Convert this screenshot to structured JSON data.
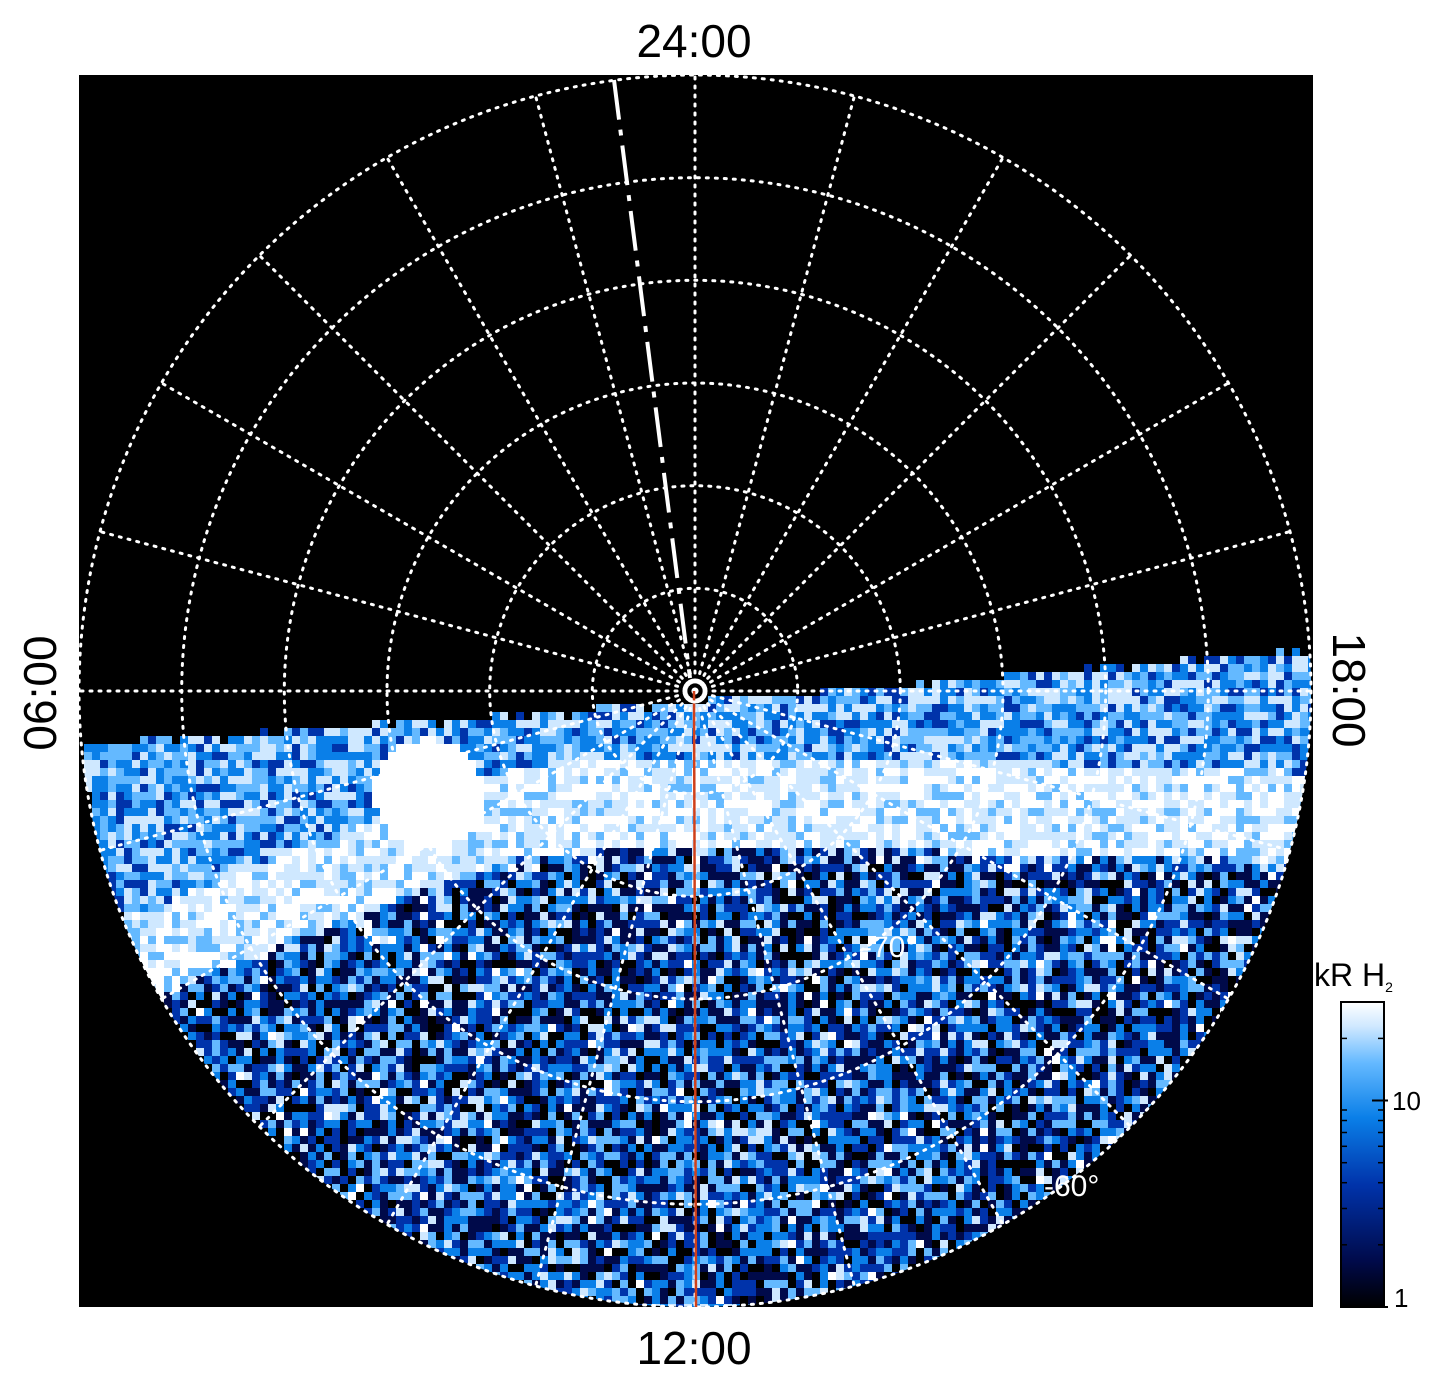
{
  "chart_data": {
    "type": "heatmap",
    "projection": "polar-stereographic",
    "background_color": "#000000",
    "local_time_labels": {
      "top": "24:00",
      "bottom": "12:00",
      "left": "06:00",
      "right": "18:00"
    },
    "latitude_labels": [
      "-70°",
      "-60°"
    ],
    "latitude_circles_deg": [
      -60,
      -65,
      -70,
      -75,
      -80,
      -85
    ],
    "meridian_spacing_hours": 1,
    "grid": true,
    "colorbar": {
      "title": "kR H",
      "title_subscript": "2",
      "scale": "log",
      "range": [
        1,
        30
      ],
      "tick_labels": [
        "1",
        "10"
      ],
      "tick_values": [
        1,
        10
      ],
      "colors": [
        "#000000",
        "#000a4a",
        "#0033aa",
        "#0a7fe8",
        "#64b9ff",
        "#cfe8ff",
        "#ffffff"
      ]
    },
    "annotations": {
      "red_line_color": "#d0401a",
      "red_line_local_time": "12:00",
      "dashed_line_local_time": "~23:30"
    },
    "emission_band": {
      "description_visible": false,
      "brightness_scale": "kR H2"
    }
  }
}
